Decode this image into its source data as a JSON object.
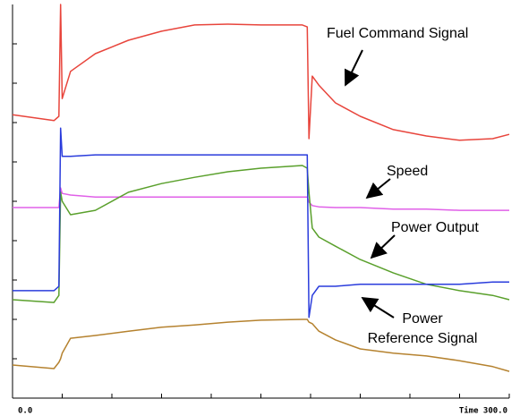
{
  "chart_data": {
    "type": "line",
    "x": [
      0,
      25,
      28,
      29,
      30,
      35,
      50,
      70,
      90,
      110,
      130,
      150,
      175,
      178,
      179,
      181,
      185,
      195,
      210,
      230,
      250,
      270,
      290,
      300
    ],
    "series": [
      {
        "color": "#e8453c",
        "values": [
          7.2,
          7.05,
          7.16,
          10,
          7.61,
          8.3,
          8.75,
          9.09,
          9.32,
          9.48,
          9.5,
          9.48,
          9.48,
          9.43,
          6.59,
          8.18,
          7.95,
          7.5,
          7.16,
          6.82,
          6.66,
          6.55,
          6.59,
          6.7
        ]
      },
      {
        "color": "#e060e8",
        "values": [
          4.84,
          4.84,
          4.84,
          5.34,
          5.2,
          5.16,
          5.11,
          5.11,
          5.11,
          5.11,
          5.11,
          5.11,
          5.11,
          5.11,
          4.98,
          4.89,
          4.86,
          4.84,
          4.84,
          4.8,
          4.8,
          4.77,
          4.77,
          4.77
        ]
      },
      {
        "color": "#5aa02c",
        "values": [
          2.5,
          2.43,
          2.61,
          5.23,
          5,
          4.66,
          4.77,
          5.23,
          5.45,
          5.61,
          5.75,
          5.84,
          5.91,
          5.84,
          5.23,
          4.32,
          4.09,
          3.86,
          3.52,
          3.18,
          2.89,
          2.73,
          2.61,
          2.5
        ]
      },
      {
        "color": "#2a3cdc",
        "values": [
          2.73,
          2.73,
          2.84,
          6.86,
          6.14,
          6.14,
          6.18,
          6.18,
          6.18,
          6.18,
          6.18,
          6.18,
          6.18,
          6.18,
          2.05,
          2.61,
          2.84,
          2.84,
          2.89,
          2.89,
          2.89,
          2.89,
          2.95,
          2.95
        ]
      },
      {
        "color": "#b5822f",
        "values": [
          0.84,
          0.75,
          0.91,
          1.0,
          1.14,
          1.52,
          1.59,
          1.7,
          1.8,
          1.86,
          1.93,
          1.98,
          2.0,
          2.0,
          1.93,
          1.89,
          1.7,
          1.48,
          1.25,
          1.14,
          1.07,
          0.95,
          0.8,
          0.68
        ]
      }
    ],
    "annotations": [
      {
        "lines": [
          "Fuel Command Signal"
        ]
      },
      {
        "lines": [
          "Speed"
        ]
      },
      {
        "lines": [
          "Power Output"
        ]
      },
      {
        "lines": [
          "Power",
          "Reference Signal"
        ]
      }
    ],
    "xlim": [
      0,
      300
    ],
    "xticks": [
      {
        "value": 0,
        "label": "0.0"
      },
      {
        "value": 300,
        "label": "Time 300.0"
      }
    ],
    "xminor_ticks": [
      30,
      60,
      90,
      120,
      150,
      180,
      210,
      240,
      270
    ],
    "ylim": [
      0,
      10
    ],
    "yticks": [
      1,
      2,
      3,
      4,
      5,
      6,
      7,
      8,
      9
    ]
  }
}
